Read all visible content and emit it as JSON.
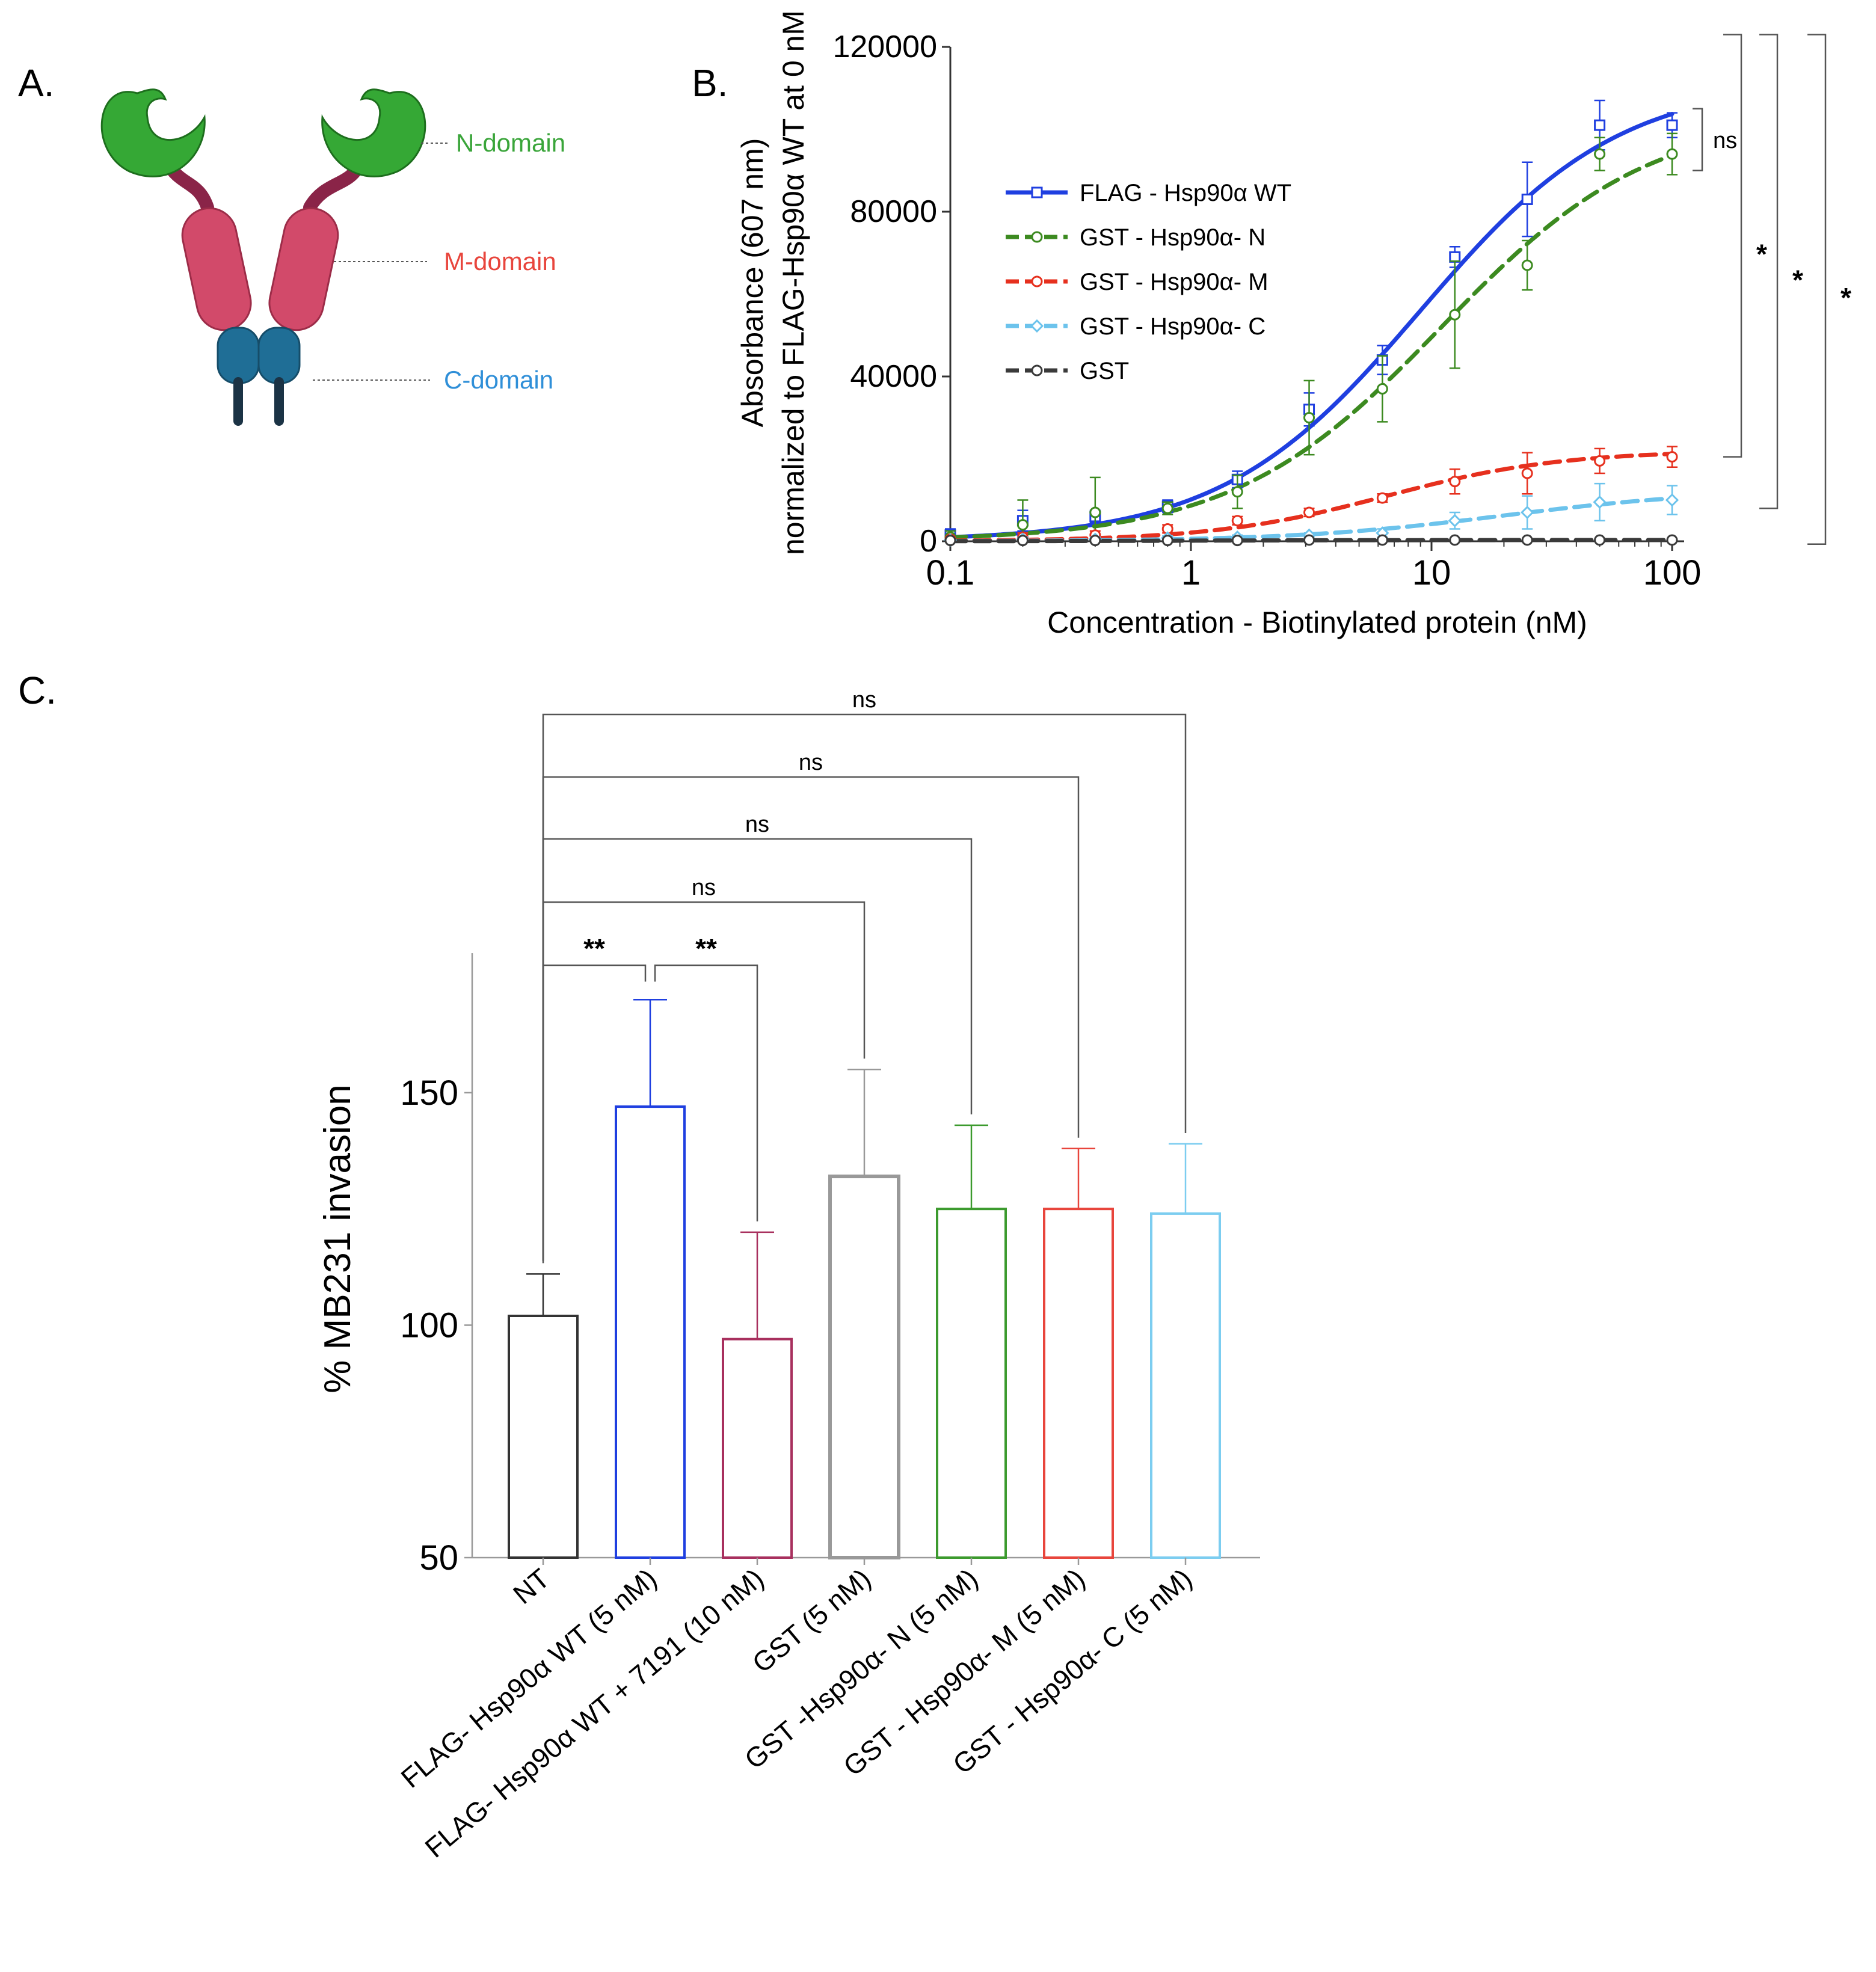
{
  "panels": {
    "a": "A.",
    "b": "B.",
    "c": "C."
  },
  "diagram": {
    "domains": [
      {
        "name": "N-domain",
        "color": "#3aa53a"
      },
      {
        "name": "M-domain",
        "color": "#e8453c"
      },
      {
        "name": "C-domain",
        "color": "#2f8fd8"
      }
    ]
  },
  "chart_data": [
    {
      "type": "line",
      "panel": "B.",
      "xlabel": "Concentration - Biotinylated protein (nM)",
      "ylabel_line1": "Absorbance (607 nm)",
      "ylabel_line2": "normalized  to FLAG-Hsp90α WT at 0 nM",
      "xscale": "log",
      "xlim": [
        0.1,
        100
      ],
      "ylim": [
        0,
        120000
      ],
      "xticks": [
        "0.1",
        "1",
        "10",
        "100"
      ],
      "yticks": [
        "0",
        "40000",
        "80000",
        "120000"
      ],
      "x": [
        0.1,
        0.2,
        0.4,
        0.8,
        1.56,
        3.1,
        6.25,
        12.5,
        25,
        50,
        100
      ],
      "series": [
        {
          "name": "FLAG - Hsp90α WT",
          "color": "#1f3fe0",
          "dash": "solid",
          "marker": "square",
          "values": [
            1500,
            5000,
            6000,
            8500,
            15000,
            32000,
            44000,
            69000,
            83000,
            101000,
            101000
          ],
          "errors": [
            1500,
            2500,
            1500,
            1500,
            2000,
            4000,
            3500,
            2500,
            9000,
            6000,
            3000
          ]
        },
        {
          "name": "GST - Hsp90α- N",
          "color": "#3c8a20",
          "dash": "dashed",
          "marker": "circle",
          "values": [
            1000,
            4000,
            7000,
            8000,
            12000,
            30000,
            37000,
            55000,
            67000,
            94000,
            94000
          ],
          "errors": [
            1500,
            6000,
            8500,
            1500,
            4000,
            9000,
            8000,
            13000,
            6000,
            4000,
            5000
          ]
        },
        {
          "name": "GST - Hsp90α- M",
          "color": "#e6301e",
          "dash": "dashed",
          "marker": "circle",
          "values": [
            500,
            1000,
            1500,
            3000,
            5000,
            7000,
            10500,
            14500,
            16500,
            19500,
            20500
          ],
          "errors": [
            500,
            1000,
            1000,
            1000,
            1000,
            1000,
            1000,
            3000,
            5000,
            3000,
            2500
          ]
        },
        {
          "name": "GST - Hsp90α- C",
          "color": "#6cc3ec",
          "dash": "dashed",
          "marker": "diamond",
          "values": [
            300,
            500,
            500,
            800,
            1000,
            1500,
            2000,
            5000,
            7000,
            9500,
            10000
          ],
          "errors": [
            300,
            500,
            500,
            500,
            500,
            500,
            1000,
            2000,
            4000,
            4500,
            3500
          ]
        },
        {
          "name": "GST",
          "color": "#3a3a3a",
          "dash": "dashed",
          "marker": "circle",
          "values": [
            200,
            200,
            200,
            200,
            200,
            300,
            300,
            300,
            300,
            300,
            300
          ],
          "errors": [
            200,
            200,
            200,
            200,
            200,
            200,
            200,
            200,
            200,
            200,
            200
          ]
        }
      ],
      "fits": [
        {
          "series": "FLAG - Hsp90α WT",
          "top": 112000,
          "ec50": 9.0,
          "hill": 1.05
        },
        {
          "series": "GST - Hsp90α- N",
          "top": 104000,
          "ec50": 11.0,
          "hill": 1.0
        },
        {
          "series": "GST - Hsp90α- M",
          "top": 22000,
          "ec50": 6.5,
          "hill": 1.2
        },
        {
          "series": "GST - Hsp90α- C",
          "top": 12500,
          "ec50": 20.0,
          "hill": 1.0
        },
        {
          "series": "GST",
          "top": 300,
          "ec50": 1.0,
          "hill": 1.0
        }
      ],
      "annotations": [
        {
          "label": "ns",
          "between": [
            "FLAG - Hsp90α WT",
            "GST - Hsp90α- N"
          ]
        },
        {
          "label": "*",
          "between": [
            "FLAG - Hsp90α WT",
            "GST - Hsp90α- M"
          ]
        },
        {
          "label": "*",
          "between": [
            "FLAG - Hsp90α WT",
            "GST - Hsp90α- C"
          ]
        },
        {
          "label": "*",
          "between": [
            "FLAG - Hsp90α WT",
            "GST"
          ]
        }
      ],
      "legend": "upper-left"
    },
    {
      "type": "bar",
      "panel": "C.",
      "ylabel": "% MB231 invasion",
      "ylim": [
        50,
        180
      ],
      "yticks": [
        "50",
        "100",
        "150"
      ],
      "categories": [
        "NT",
        "FLAG- Hsp90α WT (5 nM)",
        "FLAG- Hsp90α WT + 7191 (10 nM)",
        "GST (5 nM)",
        "GST -Hsp90α- N (5 nM)",
        "GST - Hsp90α- M (5 nM)",
        "GST - Hsp90α- C (5 nM)"
      ],
      "values": [
        102,
        147,
        97,
        132,
        125,
        125,
        124
      ],
      "errors": [
        9,
        23,
        23,
        23,
        18,
        13,
        15
      ],
      "colors": [
        "#333333",
        "#1f3fe0",
        "#a8305e",
        "#999999",
        "#3c9a2e",
        "#e8453c",
        "#7ccdf0"
      ],
      "comparisons": [
        {
          "from": "NT",
          "to": "FLAG- Hsp90α WT (5 nM)",
          "label": "**"
        },
        {
          "from": "FLAG- Hsp90α WT (5 nM)",
          "to": "FLAG- Hsp90α WT + 7191 (10 nM)",
          "label": "**"
        },
        {
          "from": "NT",
          "to": "GST (5 nM)",
          "label": "ns"
        },
        {
          "from": "NT",
          "to": "GST -Hsp90α- N (5 nM)",
          "label": "ns"
        },
        {
          "from": "NT",
          "to": "GST - Hsp90α- M (5 nM)",
          "label": "ns"
        },
        {
          "from": "NT",
          "to": "GST - Hsp90α- C (5 nM)",
          "label": "ns"
        }
      ]
    }
  ]
}
